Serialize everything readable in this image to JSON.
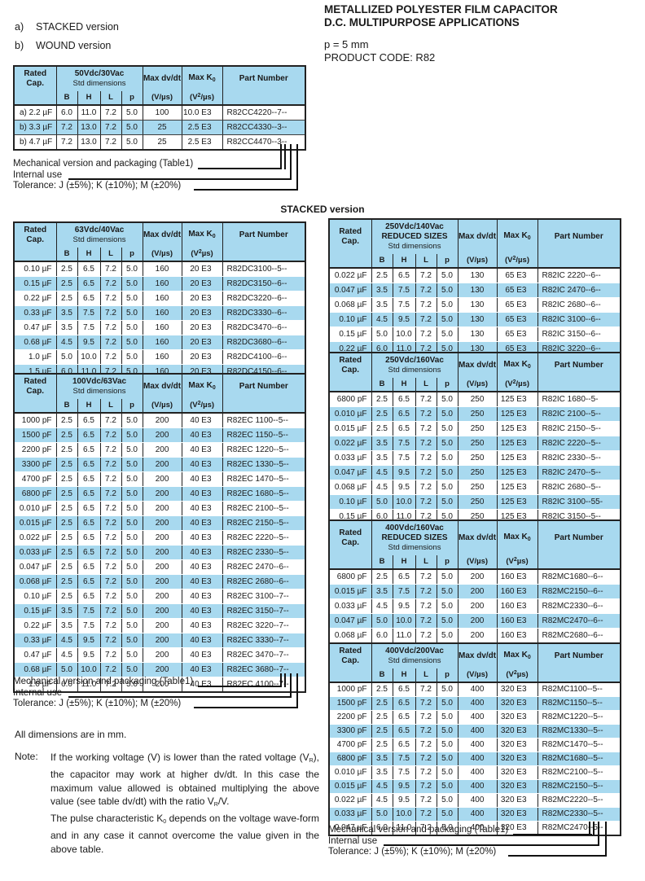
{
  "header": {
    "label_a_prefix": "a)",
    "label_a": "STACKED version",
    "label_b_prefix": "b)",
    "label_b": "WOUND version",
    "title_line1": "METALLIZED POLYESTER FILM CAPACITOR",
    "title_line2": "D.C. MULTIPURPOSE APPLICATIONS",
    "pitch": "p = 5 mm",
    "product_code": "PRODUCT CODE: R82"
  },
  "section_heading": "STACKED version",
  "footer_lines": [
    "Mechanical version and packaging (Table1)",
    "Internal use",
    "Tolerance: J (±5%); K (±10%); M (±20%)"
  ],
  "dimensions_note": "All dimensions are in mm.",
  "note_label": "Note:",
  "note_para1_html": "If the working voltage (V) is lower than the rated voltage (V<sub>R</sub>), the capacitor may work at higher dv/dt. In this case the maximum value allowed is obtained multiplying the above value (see table dv/dt) with the ratio V<sub>R</sub>/V.",
  "note_para2_html": "The pulse characteristic K<sub>0</sub> depends on the voltage wave-form and in any case it cannot overcome the value given in the above table.",
  "table_headers": {
    "rated": "Rated Cap.",
    "std": "Std dimensions",
    "reduced": "REDUCED SIZES",
    "dims": [
      "B",
      "H",
      "L",
      "p"
    ],
    "max_dvdt": "Max dv/dt",
    "max_k0_html": "Max K<sub>0</sub>",
    "part": "Part Number"
  },
  "tables": [
    {
      "id": "t50",
      "name": "table-50vdc-30vac",
      "voltage": "50Vdc/30Vac",
      "reduced": false,
      "dvdt_unit": "(V/µs)",
      "k0_unit_html": "(V<sup>2</sup>/µs)",
      "rows": [
        [
          "a) 2.2 µF",
          "6.0",
          "11.0",
          "7.2",
          "5.0",
          "100",
          "10.0 E3",
          "R82CC4220--7--"
        ],
        [
          "b) 3.3 µF",
          "7.2",
          "13.0",
          "7.2",
          "5.0",
          "25",
          "2.5 E3",
          "R82CC4330--3--"
        ],
        [
          "b) 4.7 µF",
          "7.2",
          "13.0",
          "7.2",
          "5.0",
          "25",
          "2.5 E3",
          "R82CC4470--3--"
        ]
      ]
    },
    {
      "id": "t63",
      "name": "table-63vdc-40vac",
      "voltage": "63Vdc/40Vac",
      "reduced": false,
      "dvdt_unit": "(V/µs)",
      "k0_unit_html": "(V<sup>2</sup>µs)",
      "rows": [
        [
          "0.10 µF",
          "2.5",
          "6.5",
          "7.2",
          "5.0",
          "160",
          "20 E3",
          "R82DC3100--5--"
        ],
        [
          "0.15 µF",
          "2.5",
          "6.5",
          "7.2",
          "5.0",
          "160",
          "20 E3",
          "R82DC3150--6--"
        ],
        [
          "0.22 µF",
          "2.5",
          "6.5",
          "7.2",
          "5.0",
          "160",
          "20 E3",
          "R82DC3220--6--"
        ],
        [
          "0.33 µF",
          "3.5",
          "7.5",
          "7.2",
          "5.0",
          "160",
          "20 E3",
          "R82DC3330--6--"
        ],
        [
          "0.47 µF",
          "3.5",
          "7.5",
          "7.2",
          "5.0",
          "160",
          "20 E3",
          "R82DC3470--6--"
        ],
        [
          "0.68 µF",
          "4.5",
          "9.5",
          "7.2",
          "5.0",
          "160",
          "20 E3",
          "R82DC3680--6--"
        ],
        [
          "1.0 µF",
          "5.0",
          "10.0",
          "7.2",
          "5.0",
          "160",
          "20 E3",
          "R82DC4100--6--"
        ],
        [
          "1.5 µF",
          "6.0",
          "11.0",
          "7.2",
          "5.0",
          "160",
          "20 E3",
          "R82DC4150--6--"
        ]
      ]
    },
    {
      "id": "t100",
      "name": "table-100vdc-63vac",
      "voltage": "100Vdc/63Vac",
      "reduced": false,
      "dvdt_unit": "(V/µs)",
      "k0_unit_html": "(V<sup>2</sup>/µs)",
      "rows": [
        [
          "1000 pF",
          "2.5",
          "6.5",
          "7.2",
          "5.0",
          "200",
          "40 E3",
          "R82EC 1100--5--"
        ],
        [
          "1500 pF",
          "2.5",
          "6.5",
          "7.2",
          "5.0",
          "200",
          "40 E3",
          "R82EC 1150--5--"
        ],
        [
          "2200 pF",
          "2.5",
          "6.5",
          "7.2",
          "5.0",
          "200",
          "40 E3",
          "R82EC 1220--5--"
        ],
        [
          "3300 pF",
          "2.5",
          "6.5",
          "7.2",
          "5.0",
          "200",
          "40 E3",
          "R82EC 1330--5--"
        ],
        [
          "4700 pF",
          "2.5",
          "6.5",
          "7.2",
          "5.0",
          "200",
          "40 E3",
          "R82EC 1470--5--"
        ],
        [
          "6800 pF",
          "2.5",
          "6.5",
          "7.2",
          "5.0",
          "200",
          "40 E3",
          "R82EC 1680--5--"
        ],
        [
          "0.010 µF",
          "2.5",
          "6.5",
          "7.2",
          "5.0",
          "200",
          "40 E3",
          "R82EC 2100--5--"
        ],
        [
          "0.015 µF",
          "2.5",
          "6.5",
          "7.2",
          "5.0",
          "200",
          "40 E3",
          "R82EC 2150--5--"
        ],
        [
          "0.022 µF",
          "2.5",
          "6.5",
          "7.2",
          "5.0",
          "200",
          "40 E3",
          "R82EC 2220--5--"
        ],
        [
          "0.033 µF",
          "2.5",
          "6.5",
          "7.2",
          "5.0",
          "200",
          "40 E3",
          "R82EC 2330--5--"
        ],
        [
          "0.047 µF",
          "2.5",
          "6.5",
          "7.2",
          "5.0",
          "200",
          "40 E3",
          "R82EC 2470--6--"
        ],
        [
          "0.068 µF",
          "2.5",
          "6.5",
          "7.2",
          "5.0",
          "200",
          "40 E3",
          "R82EC 2680--6--"
        ],
        [
          "0.10 µF",
          "2.5",
          "6.5",
          "7.2",
          "5.0",
          "200",
          "40 E3",
          "R82EC 3100--7--"
        ],
        [
          "0.15 µF",
          "3.5",
          "7.5",
          "7.2",
          "5.0",
          "200",
          "40 E3",
          "R82EC 3150--7--"
        ],
        [
          "0.22 µF",
          "3.5",
          "7.5",
          "7.2",
          "5.0",
          "200",
          "40 E3",
          "R82EC 3220--7--"
        ],
        [
          "0.33 µF",
          "4.5",
          "9.5",
          "7.2",
          "5.0",
          "200",
          "40 E3",
          "R82EC 3330--7--"
        ],
        [
          "0.47 µF",
          "4.5",
          "9.5",
          "7.2",
          "5.0",
          "200",
          "40 E3",
          "R82EC 3470--7--"
        ],
        [
          "0.68 µF",
          "5.0",
          "10.0",
          "7.2",
          "5.0",
          "200",
          "40 E3",
          "R82EC 3680--7--"
        ],
        [
          "1.0 µF",
          "6.0",
          "11.0",
          "7.2",
          "5.0",
          "200",
          "40 E3",
          "R82EC 4100--7--"
        ]
      ]
    },
    {
      "id": "t250a",
      "name": "table-250vdc-140vac-reduced",
      "voltage": "250Vdc/140Vac",
      "reduced": true,
      "dvdt_unit": "(V/µs)",
      "k0_unit_html": "(V<sup>2</sup>/µs)",
      "rows": [
        [
          "0.022 µF",
          "2.5",
          "6.5",
          "7.2",
          "5.0",
          "130",
          "65 E3",
          "R82IC 2220--6--"
        ],
        [
          "0.047 µF",
          "3.5",
          "7.5",
          "7.2",
          "5.0",
          "130",
          "65 E3",
          "R82IC 2470--6--"
        ],
        [
          "0.068 µF",
          "3.5",
          "7.5",
          "7.2",
          "5.0",
          "130",
          "65 E3",
          "R82IC 2680--6--"
        ],
        [
          "0.10 µF",
          "4.5",
          "9.5",
          "7.2",
          "5.0",
          "130",
          "65 E3",
          "R82IC 3100--6--"
        ],
        [
          "0.15 µF",
          "5.0",
          "10.0",
          "7.2",
          "5.0",
          "130",
          "65 E3",
          "R82IC 3150--6--"
        ],
        [
          "0.22 µF",
          "6.0",
          "11.0",
          "7.2",
          "5.0",
          "130",
          "65 E3",
          "R82IC 3220--6--"
        ]
      ]
    },
    {
      "id": "t250b",
      "name": "table-250vdc-160vac",
      "voltage": "250Vdc/160Vac",
      "reduced": false,
      "dvdt_unit": "(V/µs)",
      "k0_unit_html": "(V<sup>2</sup>/µs)",
      "rows": [
        [
          "6800 pF",
          "2.5",
          "6.5",
          "7.2",
          "5.0",
          "250",
          "125 E3",
          "R82IC 1680--5-"
        ],
        [
          "0.010 µF",
          "2.5",
          "6.5",
          "7.2",
          "5.0",
          "250",
          "125 E3",
          "R82IC 2100--5--"
        ],
        [
          "0.015 µF",
          "2.5",
          "6.5",
          "7.2",
          "5.0",
          "250",
          "125 E3",
          "R82IC 2150--5--"
        ],
        [
          "0.022 µF",
          "3.5",
          "7.5",
          "7.2",
          "5.0",
          "250",
          "125 E3",
          "R82IC 2220--5--"
        ],
        [
          "0.033 µF",
          "3.5",
          "7.5",
          "7.2",
          "5.0",
          "250",
          "125 E3",
          "R82IC 2330--5--"
        ],
        [
          "0.047 µF",
          "4.5",
          "9.5",
          "7.2",
          "5.0",
          "250",
          "125 E3",
          "R82IC 2470--5--"
        ],
        [
          "0.068 µF",
          "4.5",
          "9.5",
          "7.2",
          "5.0",
          "250",
          "125 E3",
          "R82IC 2680--5--"
        ],
        [
          "0.10 µF",
          "5.0",
          "10.0",
          "7.2",
          "5.0",
          "250",
          "125 E3",
          "R82IC 3100--55-"
        ],
        [
          "0.15 µF",
          "6.0",
          "11.0",
          "7.2",
          "5.0",
          "250",
          "125 E3",
          "R82IC 3150--5--"
        ]
      ]
    },
    {
      "id": "t400a",
      "name": "table-400vdc-160vac-reduced",
      "voltage": "400Vdc/160Vac",
      "reduced": true,
      "dvdt_unit": "(V/µs)",
      "k0_unit_html": "(V<sup>2</sup>µs)",
      "rows": [
        [
          "6800 pF",
          "2.5",
          "6.5",
          "7.2",
          "5.0",
          "200",
          "160 E3",
          "R82MC1680--6--"
        ],
        [
          "0.015 µF",
          "3.5",
          "7.5",
          "7.2",
          "5.0",
          "200",
          "160 E3",
          "R82MC2150--6--"
        ],
        [
          "0.033 µF",
          "4.5",
          "9.5",
          "7.2",
          "5.0",
          "200",
          "160 E3",
          "R82MC2330--6--"
        ],
        [
          "0.047 µF",
          "5.0",
          "10.0",
          "7.2",
          "5.0",
          "200",
          "160 E3",
          "R82MC2470--6--"
        ],
        [
          "0.068 µF",
          "6.0",
          "11.0",
          "7.2",
          "5.0",
          "200",
          "160 E3",
          "R82MC2680--6--"
        ]
      ]
    },
    {
      "id": "t400b",
      "name": "table-400vdc-200vac",
      "voltage": "400Vdc/200Vac",
      "reduced": false,
      "dvdt_unit": "(V/µs)",
      "k0_unit_html": "(V<sup>2</sup>µs)",
      "rows": [
        [
          "1000 pF",
          "2.5",
          "6.5",
          "7.2",
          "5.0",
          "400",
          "320 E3",
          "R82MC1100--5--"
        ],
        [
          "1500 pF",
          "2.5",
          "6.5",
          "7.2",
          "5.0",
          "400",
          "320 E3",
          "R82MC1150--5--"
        ],
        [
          "2200 pF",
          "2.5",
          "6.5",
          "7.2",
          "5.0",
          "400",
          "320 E3",
          "R82MC1220--5--"
        ],
        [
          "3300 pF",
          "2.5",
          "6.5",
          "7.2",
          "5.0",
          "400",
          "320 E3",
          "R82MC1330--5--"
        ],
        [
          "4700 pF",
          "2.5",
          "6.5",
          "7.2",
          "5.0",
          "400",
          "320 E3",
          "R82MC1470--5--"
        ],
        [
          "6800 pF",
          "3.5",
          "7.5",
          "7.2",
          "5.0",
          "400",
          "320 E3",
          "R82MC1680--5--"
        ],
        [
          "0.010 µF",
          "3.5",
          "7.5",
          "7.2",
          "5.0",
          "400",
          "320 E3",
          "R82MC2100--5--"
        ],
        [
          "0.015 µF",
          "4.5",
          "9.5",
          "7.2",
          "5.0",
          "400",
          "320 E3",
          "R82MC2150--5--"
        ],
        [
          "0.022 µF",
          "4.5",
          "9.5",
          "7.2",
          "5.0",
          "400",
          "320 E3",
          "R82MC2220--5--"
        ],
        [
          "0.033 µF",
          "5.0",
          "10.0",
          "7.2",
          "5.0",
          "400",
          "320 E3",
          "R82MC2330--5--"
        ],
        [
          "0.047 µF",
          "6.0",
          "11.0",
          "7.2",
          "5.0",
          "400",
          "320 E3",
          "R82MC2470--5--"
        ]
      ]
    }
  ]
}
